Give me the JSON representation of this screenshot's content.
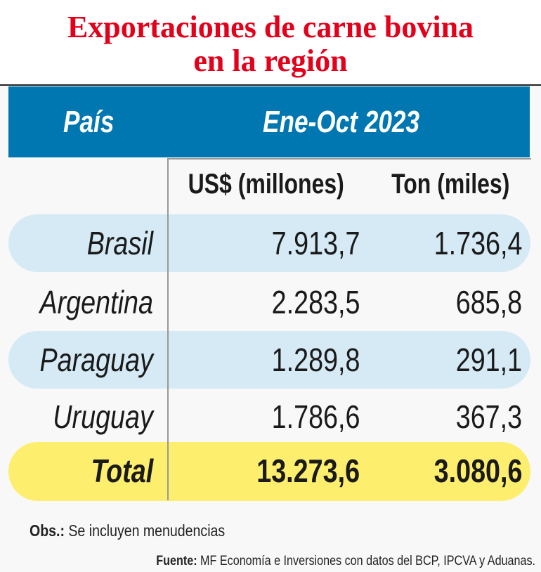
{
  "chart_data": {
    "type": "table",
    "title": "Exportaciones de carne bovina en la región",
    "title_lines": [
      "Exportaciones de carne bovina",
      "en la región"
    ],
    "header": {
      "country": "País",
      "period": "Ene-Oct 2023"
    },
    "columns": [
      "US$ (millones)",
      "Ton (miles)"
    ],
    "rows": [
      {
        "country": "Brasil",
        "usd": "7.913,7",
        "ton": "1.736,4"
      },
      {
        "country": "Argentina",
        "usd": "2.283,5",
        "ton": "685,8"
      },
      {
        "country": "Paraguay",
        "usd": "1.289,8",
        "ton": "291,1"
      },
      {
        "country": "Uruguay",
        "usd": "1.786,6",
        "ton": "367,3"
      }
    ],
    "total": {
      "country": "Total",
      "usd": "13.273,6",
      "ton": "3.080,6"
    }
  },
  "notes": {
    "obs_label": "Obs.:",
    "obs_text": " Se incluyen menudencias",
    "source_label": "Fuente:",
    "source_text": " MF Economía e Inversiones con datos del BCP, IPCVA y Aduanas."
  },
  "colors": {
    "title": "#e3001b",
    "header": "#0077b0",
    "row_highlight": "#d5eaf5",
    "total_highlight": "#fdee6e"
  }
}
